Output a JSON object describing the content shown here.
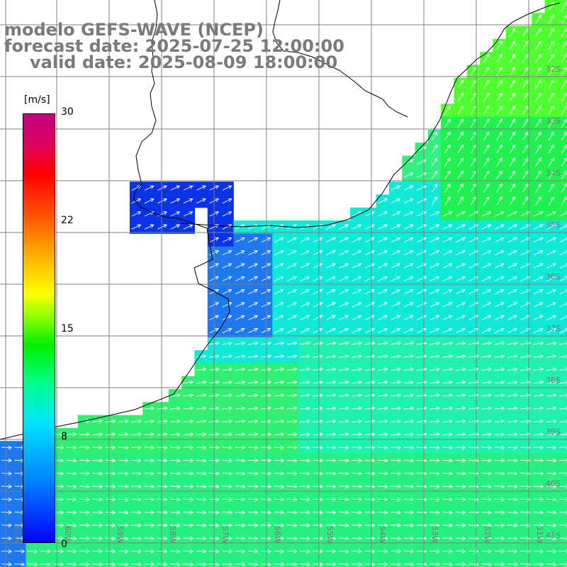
{
  "title": {
    "line1": "modelo GEFS-WAVE (NCEP)",
    "line2": "forecast date: 2025-07-25 12:00:00",
    "line3": "valid date: 2025-08-09 18:00:00"
  },
  "colorbar": {
    "unit": "[m/s]",
    "ticks": [
      "30",
      "22",
      "15",
      "8",
      "0"
    ]
  },
  "longitude_labels": [
    "61W",
    "60W",
    "59W",
    "58W",
    "57W",
    "56W",
    "55W",
    "54W",
    "53W",
    "52W",
    "51W"
  ],
  "latitude_labels": [
    "32S",
    "33S",
    "34S",
    "35S",
    "36S",
    "37S",
    "38S",
    "39S",
    "40S",
    "41S"
  ],
  "colors": {
    "land": "#ffffff",
    "coastline": "#000000",
    "grid": "#7f7f7f",
    "arrow": "#ffffff",
    "title_text": "#7a7a7a"
  }
}
